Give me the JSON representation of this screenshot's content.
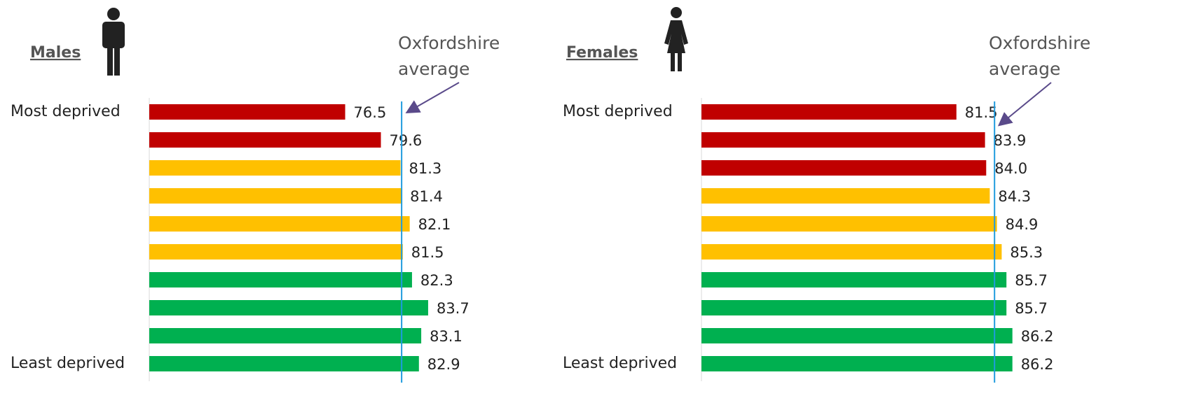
{
  "chart_data": [
    {
      "type": "hbar",
      "title": "Males",
      "categories": [
        "Most deprived",
        null,
        null,
        null,
        null,
        null,
        null,
        null,
        null,
        "Least deprived"
      ],
      "values": [
        76.5,
        79.6,
        81.3,
        81.4,
        82.1,
        81.5,
        82.3,
        83.7,
        83.1,
        82.9
      ],
      "value_labels": [
        "76.5",
        "79.6",
        "81.3",
        "81.4",
        "82.1",
        "81.5",
        "82.3",
        "83.7",
        "83.1",
        "82.9"
      ],
      "colors": [
        "#c00000",
        "#c00000",
        "#ffc000",
        "#ffc000",
        "#ffc000",
        "#ffc000",
        "#00b050",
        "#00b050",
        "#00b050",
        "#00b050"
      ],
      "xlim": [
        59.5,
        86.5
      ],
      "reference_line": {
        "value": 81.4,
        "label": "Oxfordshire average",
        "color": "#1f9bde"
      }
    },
    {
      "type": "hbar",
      "title": "Females",
      "categories": [
        "Most deprived",
        null,
        null,
        null,
        null,
        null,
        null,
        null,
        null,
        "Least deprived"
      ],
      "values": [
        81.5,
        83.9,
        84.0,
        84.3,
        84.9,
        85.3,
        85.7,
        85.7,
        86.2,
        86.2
      ],
      "value_labels": [
        "81.5",
        "83.9",
        "84.0",
        "84.3",
        "84.9",
        "85.3",
        "85.7",
        "85.7",
        "86.2",
        "86.2"
      ],
      "colors": [
        "#c00000",
        "#c00000",
        "#c00000",
        "#ffc000",
        "#ffc000",
        "#ffc000",
        "#00b050",
        "#00b050",
        "#00b050",
        "#00b050"
      ],
      "xlim": [
        60.1,
        87.1
      ],
      "reference_line": {
        "value": 84.7,
        "label": "Oxfordshire average",
        "color": "#1f9bde"
      }
    }
  ]
}
